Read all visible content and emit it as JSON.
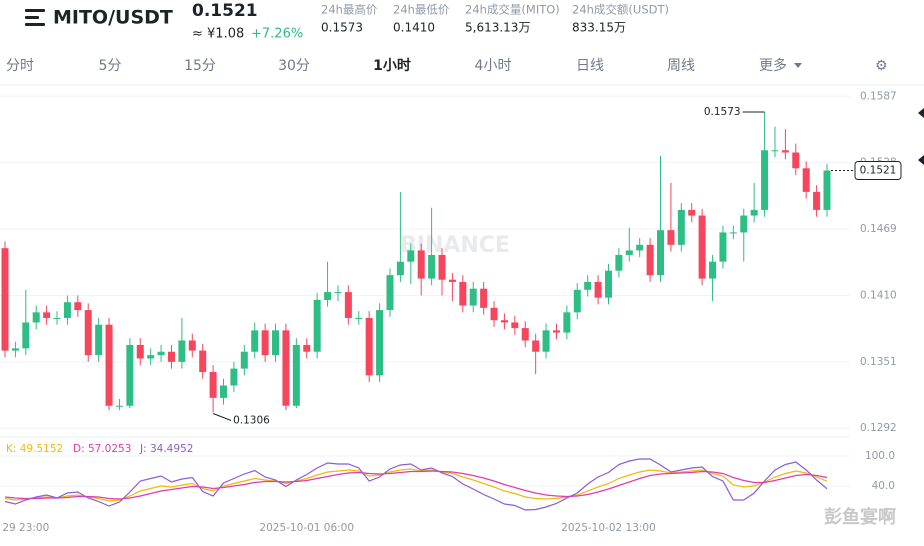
{
  "header": {
    "pair": "MITO/USDT",
    "price": "0.1521",
    "cny": "≈ ¥1.08",
    "change": "+7.26%",
    "stats": [
      {
        "label": "24h最高价",
        "value": "0.1573"
      },
      {
        "label": "24h最低价",
        "value": "0.1410"
      },
      {
        "label": "24h成交量(MITO)",
        "value": "5,613.13万"
      },
      {
        "label": "24h成交额(USDT)",
        "value": "833.15万"
      }
    ]
  },
  "tabs": [
    "分时",
    "5分",
    "15分",
    "30分",
    "1小时",
    "4小时",
    "日线",
    "周线",
    "更多"
  ],
  "active_tab": "1小时",
  "watermark": "BINANCE",
  "credit": "彭鱼宴啊",
  "chart_data": [
    {
      "type": "candlestick",
      "up_color": "#2ebd85",
      "down_color": "#f6465d",
      "categories": [
        null,
        null,
        "29 23:00",
        null,
        null,
        null,
        null,
        null,
        null,
        null,
        null,
        null,
        null,
        null,
        null,
        null,
        null,
        null,
        null,
        null,
        null,
        null,
        null,
        null,
        null,
        null,
        null,
        null,
        null,
        "2025-10-01 06:00",
        null,
        null,
        null,
        null,
        null,
        null,
        null,
        null,
        null,
        null,
        null,
        null,
        null,
        null,
        null,
        null,
        null,
        null,
        null,
        null,
        null,
        null,
        null,
        null,
        null,
        null,
        null,
        null,
        "2025-10-02 13:00",
        null,
        null,
        null,
        null,
        null,
        null,
        null,
        null,
        null,
        null,
        null,
        null,
        null,
        null,
        null,
        null,
        null,
        null,
        null,
        null,
        null
      ],
      "open": [
        0.1452,
        0.1361,
        0.1363,
        0.1386,
        0.1395,
        0.139,
        0.139,
        0.1404,
        0.1397,
        0.1357,
        0.1384,
        0.1312,
        0.1312,
        0.1366,
        0.1354,
        0.1357,
        0.136,
        0.1351,
        0.137,
        0.1361,
        0.1342,
        0.1319,
        0.133,
        0.1345,
        0.136,
        0.1379,
        0.1357,
        0.1379,
        0.1312,
        0.1366,
        0.136,
        0.1406,
        0.1413,
        0.1413,
        0.139,
        0.139,
        0.1339,
        0.1397,
        0.1428,
        0.144,
        0.145,
        0.1425,
        0.1446,
        0.1424,
        0.1422,
        0.1401,
        0.1416,
        0.1399,
        0.1388,
        0.1386,
        0.1381,
        0.137,
        0.136,
        0.1379,
        0.1377,
        0.1395,
        0.1415,
        0.1422,
        0.1408,
        0.1432,
        0.1446,
        0.145,
        0.1455,
        0.1428,
        0.1468,
        0.1455,
        0.1486,
        0.1481,
        0.1425,
        0.144,
        0.1466,
        0.1466,
        0.1481,
        0.1486,
        0.1539,
        0.1539,
        0.1537,
        0.1523,
        0.1502,
        0.1486
      ],
      "high": [
        0.1458,
        0.1369,
        0.1415,
        0.1401,
        0.1401,
        0.1396,
        0.141,
        0.141,
        0.1403,
        0.139,
        0.139,
        0.1318,
        0.1372,
        0.1372,
        0.1363,
        0.1366,
        0.1366,
        0.139,
        0.1376,
        0.1367,
        0.1348,
        0.1336,
        0.1351,
        0.1366,
        0.1386,
        0.1385,
        0.1385,
        0.1385,
        0.1372,
        0.1372,
        0.1412,
        0.144,
        0.1419,
        0.1419,
        0.1396,
        0.1396,
        0.1403,
        0.1434,
        0.1502,
        0.1456,
        0.1456,
        0.1488,
        0.1452,
        0.143,
        0.1428,
        0.1422,
        0.1422,
        0.1405,
        0.1394,
        0.1392,
        0.1387,
        0.1376,
        0.1385,
        0.1385,
        0.1401,
        0.1421,
        0.1428,
        0.1428,
        0.1438,
        0.1452,
        0.147,
        0.1461,
        0.1461,
        0.1534,
        0.151,
        0.1492,
        0.1492,
        0.1487,
        0.1446,
        0.1472,
        0.1472,
        0.1487,
        0.151,
        0.1573,
        0.156,
        0.1558,
        0.1545,
        0.1529,
        0.1508,
        0.1527
      ],
      "low": [
        0.1355,
        0.1355,
        0.1357,
        0.138,
        0.1384,
        0.1384,
        0.1384,
        0.1391,
        0.1351,
        0.1351,
        0.1308,
        0.1308,
        0.131,
        0.1348,
        0.1348,
        0.1351,
        0.1345,
        0.1345,
        0.1355,
        0.1336,
        0.1306,
        0.1313,
        0.1324,
        0.1339,
        0.1354,
        0.1351,
        0.1351,
        0.1308,
        0.131,
        0.1354,
        0.1354,
        0.14,
        0.1405,
        0.1384,
        0.1384,
        0.1333,
        0.1333,
        0.1391,
        0.1422,
        0.142,
        0.141,
        0.1419,
        0.141,
        0.1405,
        0.1395,
        0.1395,
        0.1393,
        0.1382,
        0.138,
        0.1375,
        0.1364,
        0.134,
        0.1354,
        0.1371,
        0.1371,
        0.1389,
        0.1409,
        0.1402,
        0.1402,
        0.1426,
        0.144,
        0.1444,
        0.1422,
        0.1422,
        0.1449,
        0.1449,
        0.1475,
        0.1419,
        0.1405,
        0.1434,
        0.146,
        0.144,
        0.1475,
        0.148,
        0.1533,
        0.1531,
        0.1517,
        0.1496,
        0.148,
        0.148
      ],
      "close": [
        0.1361,
        0.1363,
        0.1386,
        0.1395,
        0.139,
        0.139,
        0.1404,
        0.1397,
        0.1357,
        0.1384,
        0.1312,
        0.1312,
        0.1366,
        0.1354,
        0.1357,
        0.136,
        0.1351,
        0.137,
        0.1361,
        0.1342,
        0.1319,
        0.133,
        0.1345,
        0.136,
        0.1379,
        0.1357,
        0.1379,
        0.1312,
        0.1366,
        0.136,
        0.1406,
        0.1413,
        0.1413,
        0.139,
        0.139,
        0.1339,
        0.1397,
        0.1428,
        0.144,
        0.145,
        0.1425,
        0.1446,
        0.1424,
        0.1422,
        0.1401,
        0.1416,
        0.1399,
        0.1388,
        0.1386,
        0.1381,
        0.137,
        0.136,
        0.1379,
        0.1377,
        0.1395,
        0.1415,
        0.1422,
        0.1408,
        0.1432,
        0.1446,
        0.145,
        0.1455,
        0.1428,
        0.1468,
        0.1455,
        0.1486,
        0.1481,
        0.1425,
        0.144,
        0.1466,
        0.1466,
        0.1481,
        0.1486,
        0.1539,
        0.1539,
        0.1537,
        0.1523,
        0.1502,
        0.1486,
        0.1521
      ],
      "ylim": [
        0.1286,
        0.1597
      ],
      "yticks": [
        0.1587,
        0.1528,
        0.1469,
        {
          "value": 0.141,
          "label": "0.1410"
        },
        0.1351,
        0.1292
      ],
      "grid": true,
      "high_label": 0.1573,
      "low_label": 0.1306,
      "last_price": 0.1521
    },
    {
      "type": "line",
      "series": [
        {
          "name": "K: 49.5152",
          "color": "#f0b90b",
          "values": [
            15,
            12,
            14,
            16,
            18,
            16,
            20,
            22,
            18,
            15,
            10,
            12,
            20,
            30,
            35,
            40,
            38,
            42,
            45,
            35,
            30,
            40,
            45,
            50,
            55,
            52,
            50,
            45,
            50,
            55,
            62,
            68,
            70,
            72,
            70,
            60,
            62,
            68,
            72,
            74,
            70,
            72,
            68,
            65,
            58,
            52,
            45,
            38,
            30,
            25,
            18,
            15,
            14,
            15,
            18,
            22,
            30,
            38,
            45,
            55,
            62,
            68,
            72,
            70,
            66,
            68,
            70,
            72,
            65,
            60,
            42,
            38,
            40,
            48,
            58,
            65,
            70,
            66,
            58,
            49.5152
          ]
        },
        {
          "name": "D: 57.0253",
          "color": "#e03cae",
          "values": [
            18,
            16,
            15,
            15,
            16,
            16,
            17,
            19,
            19,
            18,
            15,
            14,
            16,
            20,
            25,
            30,
            33,
            36,
            39,
            38,
            35,
            37,
            40,
            43,
            47,
            49,
            49,
            48,
            49,
            51,
            55,
            59,
            63,
            66,
            67,
            65,
            64,
            65,
            67,
            69,
            69,
            70,
            69,
            68,
            65,
            61,
            56,
            50,
            43,
            37,
            31,
            26,
            22,
            20,
            19,
            20,
            23,
            28,
            34,
            41,
            48,
            55,
            61,
            64,
            65,
            66,
            67,
            69,
            68,
            65,
            57,
            51,
            47,
            47,
            51,
            56,
            61,
            63,
            61,
            57.0253
          ]
        },
        {
          "name": "J: 34.4952",
          "color": "#8a5cd6",
          "values": [
            9,
            4,
            12,
            18,
            22,
            16,
            26,
            28,
            16,
            9,
            0,
            8,
            28,
            50,
            55,
            60,
            48,
            54,
            57,
            29,
            20,
            46,
            55,
            64,
            71,
            58,
            52,
            39,
            52,
            63,
            76,
            86,
            84,
            84,
            76,
            50,
            58,
            74,
            82,
            84,
            72,
            76,
            66,
            59,
            44,
            34,
            23,
            14,
            4,
            1,
            -8,
            -7,
            -2,
            5,
            16,
            26,
            44,
            58,
            67,
            83,
            90,
            94,
            94,
            82,
            68,
            72,
            76,
            78,
            59,
            50,
            12,
            12,
            26,
            50,
            72,
            83,
            88,
            72,
            52,
            34.4952
          ]
        }
      ],
      "ylim": [
        -20,
        122
      ],
      "yticks": [
        {
          "value": 100,
          "label": "100.0"
        },
        {
          "value": 40,
          "label": "40.0"
        }
      ]
    }
  ]
}
